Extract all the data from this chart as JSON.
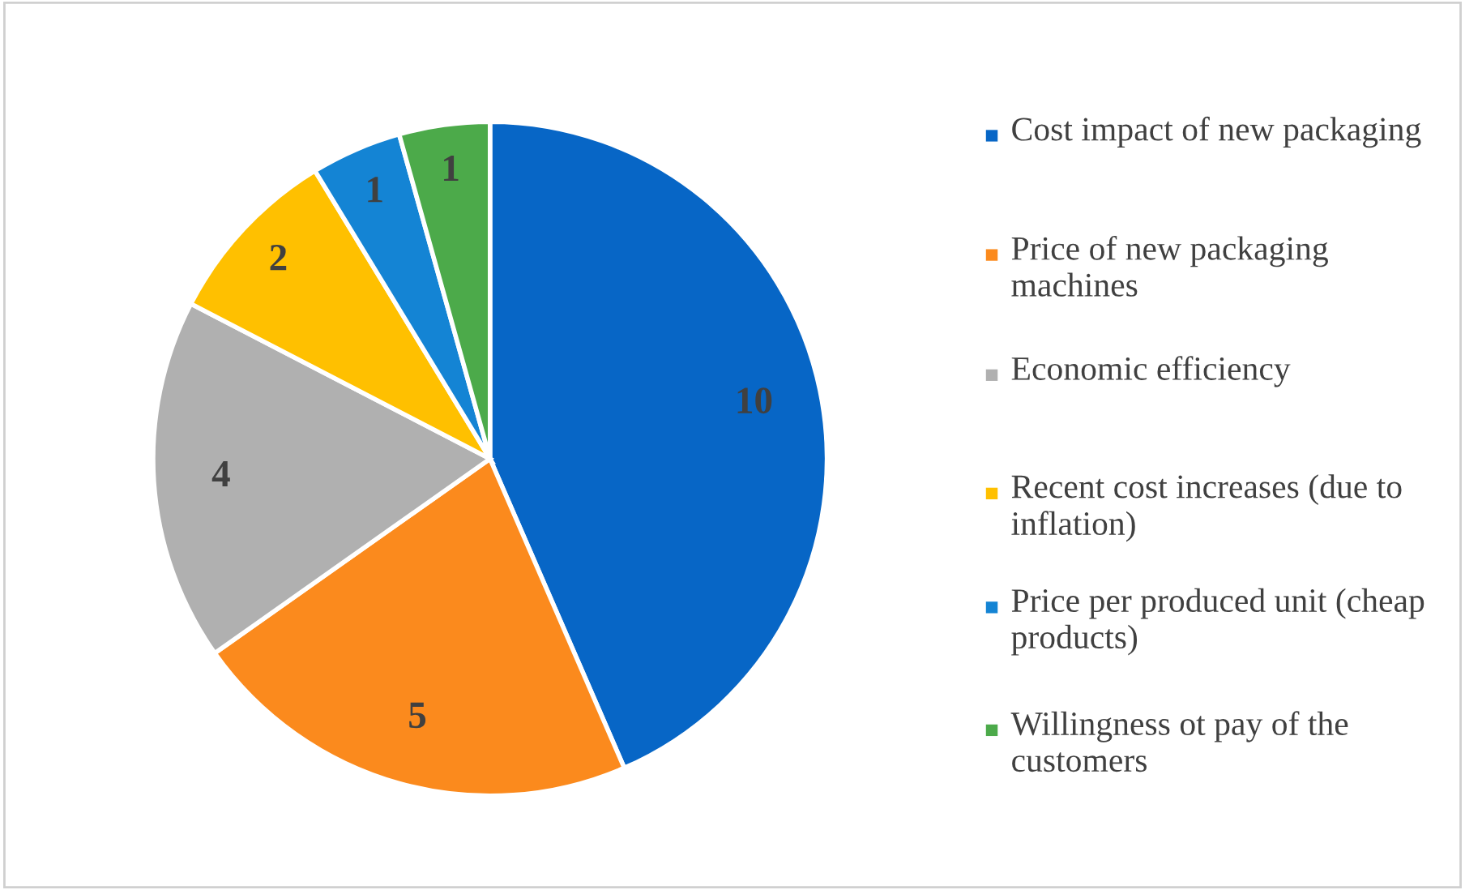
{
  "chart_data": {
    "type": "pie",
    "categories": [
      "Cost impact of new packaging",
      "Price of new packaging machines",
      "Economic efficiency",
      "Recent cost increases (due to inflation)",
      "Price per produced unit (cheap products)",
      "Willingness ot pay of the customers"
    ],
    "values": [
      10,
      5,
      4,
      2,
      1,
      1
    ],
    "colors": [
      "#0766c6",
      "#fb8a1d",
      "#b0b0b0",
      "#ffc000",
      "#1484d4",
      "#4caa4a"
    ],
    "data_labels": true,
    "legend": "right"
  }
}
